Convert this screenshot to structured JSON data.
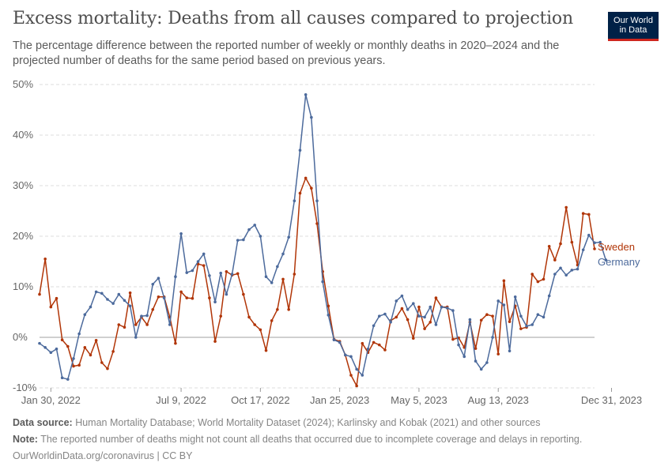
{
  "title": "Excess mortality: Deaths from all causes compared to projection",
  "subtitle": "The percentage difference between the reported number of weekly or monthly deaths in 2020–2024 and the projected number of deaths for the same period based on previous years.",
  "logo": {
    "line1": "Our World",
    "line2": "in Data"
  },
  "footer": {
    "source_label": "Data source:",
    "source_text": " Human Mortality Database; World Mortality Dataset (2024); Karlinsky and Kobak (2021) and other sources",
    "note_label": "Note:",
    "note_text": " The reported number of deaths might not count all deaths that occurred due to incomplete coverage and delays in reporting.",
    "url": "OurWorldinData.org/coronavirus | CC BY"
  },
  "chart_data": {
    "type": "line",
    "ylim": [
      -10,
      50
    ],
    "y_ticks": [
      -10,
      0,
      10,
      20,
      30,
      40,
      50
    ],
    "y_tick_labels": [
      "-10%",
      "0%",
      "10%",
      "20%",
      "30%",
      "40%",
      "50%"
    ],
    "x_tick_labels": [
      "Jan 30, 2022",
      "Jul 9, 2022",
      "Oct 17, 2022",
      "Jan 25, 2023",
      "May 5, 2023",
      "Aug 13, 2023",
      "Dec 31, 2023"
    ],
    "x_tick_index": [
      2,
      25,
      39,
      53,
      67,
      81,
      101
    ],
    "grid": true,
    "legend_placement": "right, inline labels",
    "colors": {
      "Sweden": "#b13507",
      "Germany": "#4c6a9c",
      "grid": "#dddddd",
      "zero_line": "#a1a1a1"
    },
    "series": [
      {
        "name": "Sweden",
        "values": [
          8.5,
          15.5,
          6,
          7.7,
          -0.5,
          -1.8,
          -5.7,
          -5.5,
          -2,
          -3.5,
          -0.6,
          -5,
          -6.2,
          -2.8,
          2.5,
          2,
          8.8,
          2.5,
          4,
          2.5,
          5.5,
          8,
          8,
          4,
          -1.2,
          9,
          7.8,
          7.7,
          14.5,
          14.2,
          7.8,
          -0.8,
          4.2,
          13,
          12.3,
          12.6,
          8.5,
          4,
          2.5,
          1.5,
          -2.6,
          3.3,
          5.5,
          11.5,
          5.5,
          12.5,
          28.5,
          31.5,
          29.5,
          22.5,
          13,
          6.2,
          -0.4,
          -0.8,
          -3.5,
          -7.5,
          -9.6,
          -1.2,
          -3,
          -1,
          -1.5,
          -2.5,
          3.3,
          4,
          5.7,
          3.5,
          -0.2,
          6,
          1.7,
          3,
          7.8,
          6,
          6,
          -0.4,
          -0.1,
          -2,
          3,
          -2.2,
          3.4,
          4.5,
          4.2,
          -3.3,
          11.2,
          3.1,
          6.2,
          1.7,
          2,
          12.5,
          11,
          11.5,
          18,
          15.3,
          18.5,
          25.7,
          18.8,
          14.3,
          24.5,
          24.3,
          17.5
        ],
        "label": "Sweden"
      },
      {
        "name": "Germany",
        "values": [
          -1.2,
          -2,
          -3,
          -2.3,
          -8,
          -8.3,
          -4.2,
          0.7,
          4.5,
          6,
          9,
          8.7,
          7.5,
          6.7,
          8.5,
          7.3,
          6.2,
          0,
          4.2,
          4.3,
          10.5,
          11.7,
          7.8,
          2.5,
          12,
          20.5,
          12.8,
          13.2,
          15,
          16.5,
          12.2,
          7,
          12.7,
          8.5,
          12.5,
          19.2,
          19.3,
          21.3,
          22.2,
          20,
          12,
          10.8,
          14,
          16.5,
          19.8,
          27,
          37,
          48,
          43.5,
          27,
          11,
          4.4,
          -0.5,
          -1,
          -3.5,
          -3.8,
          -6.3,
          -7.5,
          -2.3,
          2.3,
          4.2,
          4.6,
          3,
          7.2,
          8.2,
          5.5,
          6.7,
          4.2,
          4,
          6,
          2.5,
          6,
          5.8,
          5.3,
          -1.5,
          -3.8,
          3.5,
          -4.7,
          -6.3,
          -5,
          0,
          7.2,
          6.4,
          -2.7,
          8,
          4.2,
          2.2,
          2.5,
          4.5,
          4,
          8.2,
          12.5,
          13.7,
          12.3,
          13.3,
          13.5,
          17.3,
          20.2,
          18.7,
          18.8,
          15.3
        ],
        "label": "Germany"
      }
    ]
  }
}
